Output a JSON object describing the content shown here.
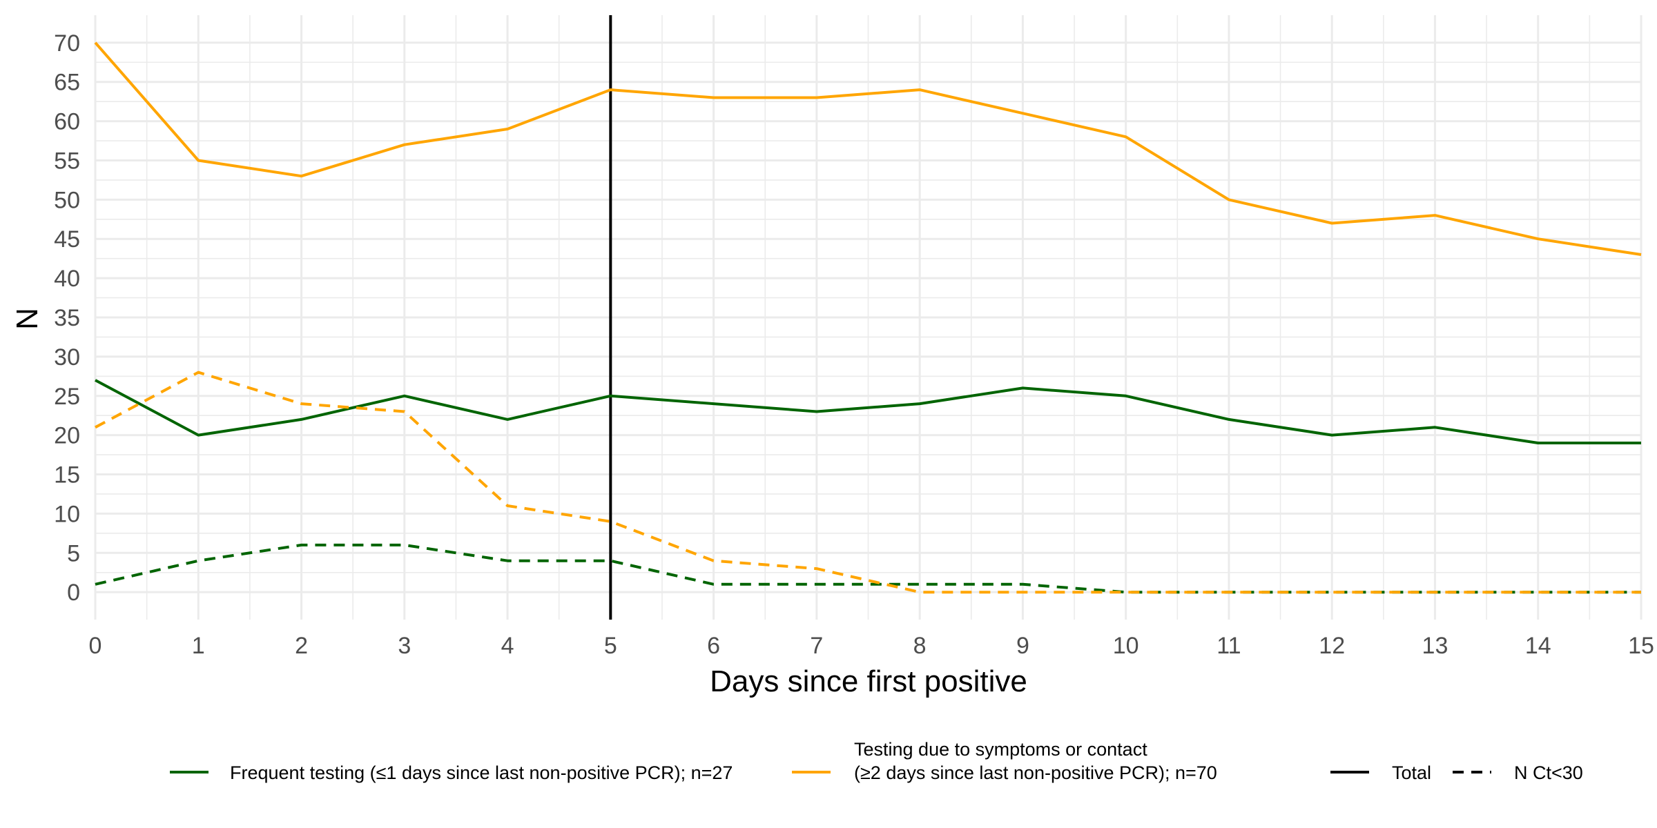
{
  "chart_data": {
    "type": "line",
    "xlabel": "Days since first positive",
    "ylabel": "N",
    "xlim": [
      0,
      15
    ],
    "ylim": [
      -3.5,
      73.5
    ],
    "x_ticks": [
      "0",
      "1",
      "2",
      "3",
      "4",
      "5",
      "6",
      "7",
      "8",
      "9",
      "10",
      "11",
      "12",
      "13",
      "14",
      "15"
    ],
    "y_ticks": [
      "0",
      "5",
      "10",
      "15",
      "20",
      "25",
      "30",
      "35",
      "40",
      "45",
      "50",
      "55",
      "60",
      "65",
      "70"
    ],
    "grid": true,
    "reference_line": {
      "x": 5,
      "color": "#000000"
    },
    "x": [
      0,
      1,
      2,
      3,
      4,
      5,
      6,
      7,
      8,
      9,
      10,
      11,
      12,
      13,
      14,
      15
    ],
    "series": [
      {
        "group": "frequent",
        "measure": "total",
        "color": "#006400",
        "dash": "solid",
        "values": [
          27,
          20,
          22,
          25,
          22,
          25,
          24,
          23,
          24,
          26,
          25,
          22,
          20,
          21,
          19,
          19
        ]
      },
      {
        "group": "frequent",
        "measure": "ct30",
        "color": "#006400",
        "dash": "dashed",
        "values": [
          1,
          4,
          6,
          6,
          4,
          4,
          1,
          1,
          1,
          1,
          0,
          0,
          0,
          0,
          0,
          0
        ]
      },
      {
        "group": "symptoms",
        "measure": "total",
        "color": "#FFA500",
        "dash": "solid",
        "values": [
          70,
          55,
          53,
          57,
          59,
          64,
          63,
          63,
          64,
          61,
          58,
          50,
          47,
          48,
          45,
          43
        ]
      },
      {
        "group": "symptoms",
        "measure": "ct30",
        "color": "#FFA500",
        "dash": "dashed",
        "values": [
          21,
          28,
          24,
          23,
          11,
          9,
          4,
          3,
          0,
          0,
          0,
          0,
          0,
          0,
          0,
          0
        ]
      }
    ],
    "legend": {
      "placement": "bottom",
      "group_entries": [
        {
          "color": "#006400",
          "lines": [
            "Frequent testing (≤1 days since last non-positive PCR); n=27"
          ]
        },
        {
          "color": "#FFA500",
          "lines": [
            "Testing due to symptoms or contact",
            "(≥2 days since last non-positive PCR); n=70"
          ]
        }
      ],
      "linetype_entries": [
        {
          "dash": "solid",
          "label": "Total"
        },
        {
          "dash": "dashed",
          "label": "N Ct<30"
        }
      ]
    }
  }
}
